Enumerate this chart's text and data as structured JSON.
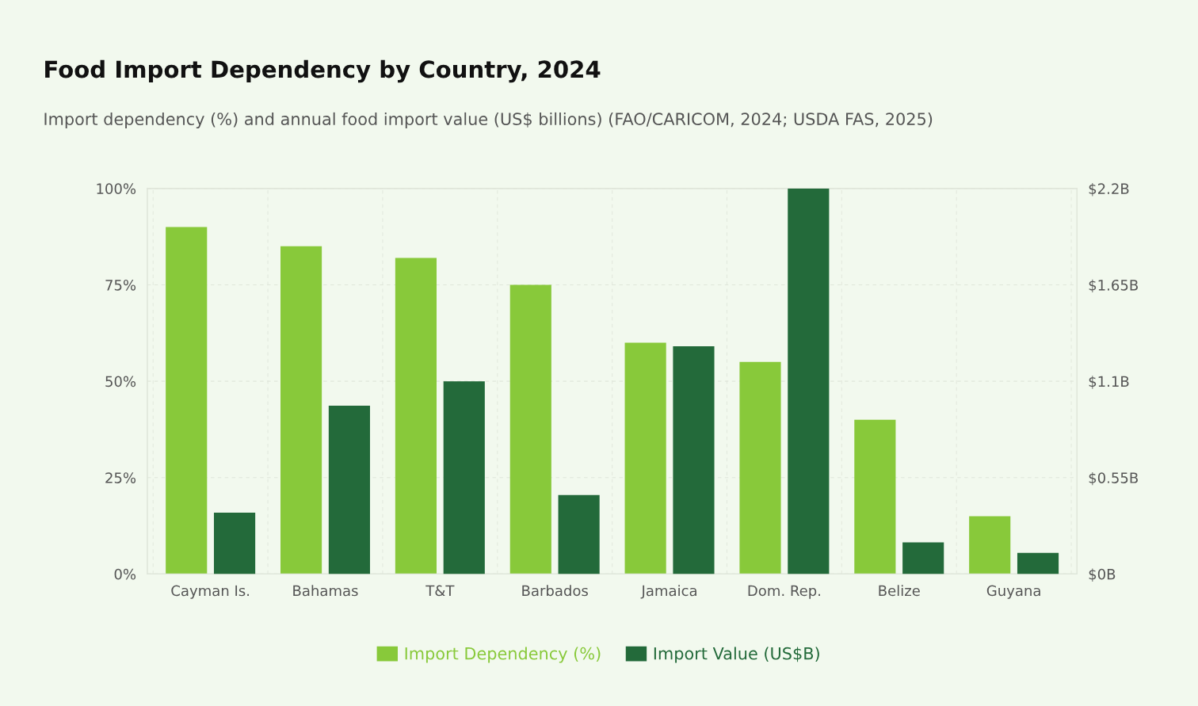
{
  "chart_data": {
    "type": "bar",
    "title": "Food Import Dependency by Country, 2024",
    "subtitle": "Import dependency (%) and annual food import value (US$ billions) (FAO/CARICOM, 2024; USDA FAS, 2025)",
    "categories": [
      "Cayman Is.",
      "Bahamas",
      "T&T",
      "Barbados",
      "Jamaica",
      "Dom. Rep.",
      "Belize",
      "Guyana"
    ],
    "series": [
      {
        "name": "Import Dependency (%)",
        "color": "#88c93a",
        "values": [
          90,
          85,
          82,
          75,
          60,
          55,
          40,
          15
        ]
      },
      {
        "name": "Import Value (US$B)",
        "color": "#236a3a",
        "axis": "y2",
        "values": [
          0.35,
          0.96,
          1.1,
          0.45,
          1.3,
          2.2,
          0.18,
          0.12
        ]
      }
    ],
    "ylim": [
      0,
      100
    ],
    "yticks": [
      {
        "value": 0,
        "label": "0%"
      },
      {
        "value": 25,
        "label": "25%"
      },
      {
        "value": 50,
        "label": "50%"
      },
      {
        "value": 75,
        "label": "75%"
      },
      {
        "value": 100,
        "label": "100%"
      }
    ],
    "y2lim": [
      0,
      2.2
    ],
    "y2ticks": [
      {
        "value": 0,
        "label": "$0B"
      },
      {
        "value": 0.55,
        "label": "$0.55B"
      },
      {
        "value": 1.1,
        "label": "$1.1B"
      },
      {
        "value": 1.65,
        "label": "$1.65B"
      },
      {
        "value": 2.2,
        "label": "$2.2B"
      }
    ],
    "grid": true,
    "legend": "bottom"
  }
}
